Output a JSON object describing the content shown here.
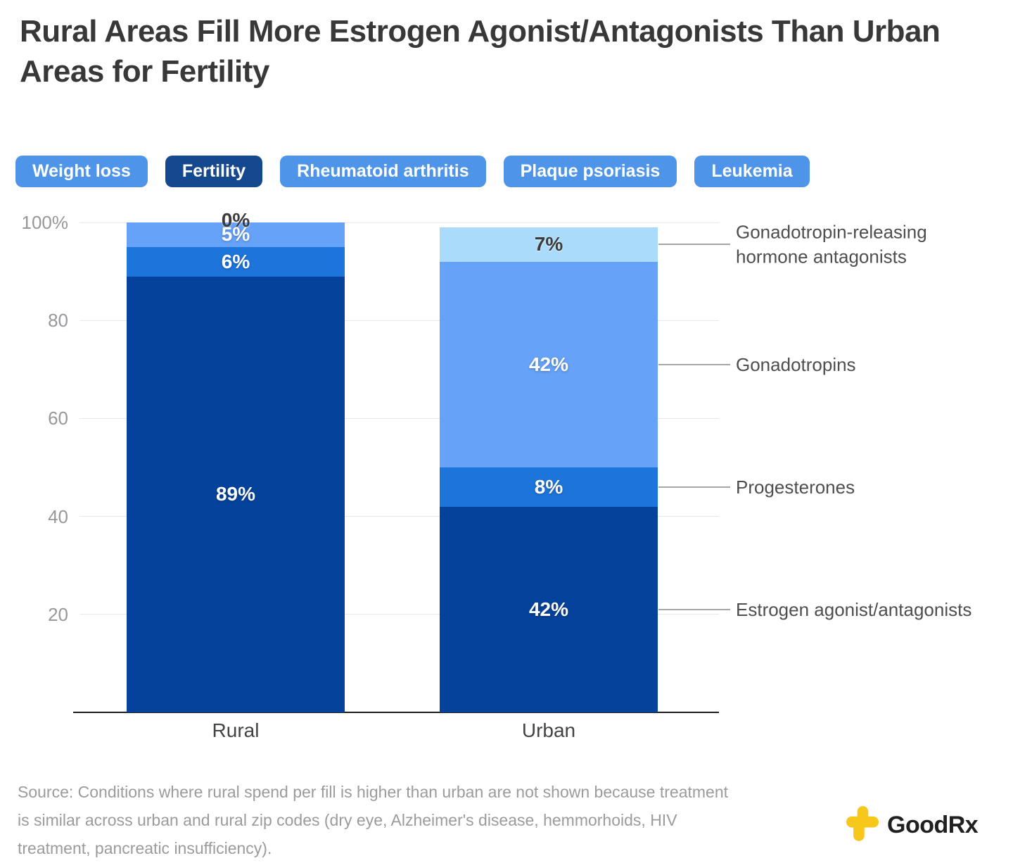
{
  "title": "Rural Areas Fill More Estrogen Agonist/Antagonists Than Urban Areas for Fertility",
  "tabs": [
    {
      "label": "Weight loss",
      "active": false
    },
    {
      "label": "Fertility",
      "active": true
    },
    {
      "label": "Rheumatoid arthritis",
      "active": false
    },
    {
      "label": "Plaque psoriasis",
      "active": false
    },
    {
      "label": "Leukemia",
      "active": false
    }
  ],
  "chart_data": {
    "type": "bar",
    "stacked": true,
    "categories": [
      "Rural",
      "Urban"
    ],
    "series": [
      {
        "name": "Estrogen agonist/antagonists",
        "values": [
          89,
          42
        ],
        "color": "#04429C",
        "label_style": "light"
      },
      {
        "name": "Progesterones",
        "values": [
          6,
          8
        ],
        "color": "#1D74DB",
        "label_style": "light"
      },
      {
        "name": "Gonadotropins",
        "values": [
          5,
          42
        ],
        "color": "#66A2F8",
        "label_style": "light"
      },
      {
        "name": "Gonadotropin-releasing hormone antagonists",
        "values": [
          0,
          7
        ],
        "color": "#ABDBFA",
        "label_style": "dark"
      }
    ],
    "value_suffix": "%",
    "ylim": [
      0,
      100
    ],
    "yticks": [
      {
        "label": "100%",
        "value": 100
      },
      {
        "label": "80",
        "value": 80
      },
      {
        "label": "60",
        "value": 60
      },
      {
        "label": "40",
        "value": 40
      },
      {
        "label": "20",
        "value": 20
      }
    ],
    "grid": true,
    "legend_position": "right-annotations"
  },
  "source_note": "Source: Conditions where rural spend per fill is higher than urban are not shown because treatment\nis similar across urban and rural zip codes (dry eye, Alzheimer's disease, hemmorhoids, HIV\ntreatment, pancreatic insufficiency).",
  "logo": {
    "text": "GoodRx",
    "icon": "goodrx-cross",
    "icon_color": "#F7C81B"
  },
  "colors": {
    "tab_active": "#14498F",
    "tab_inactive": "#4E94E8",
    "axis_label": "#96989B",
    "annotation_text": "#4E4E4E",
    "gridline": "#E9E9E9",
    "brand_yellow": "#F7C81B"
  }
}
